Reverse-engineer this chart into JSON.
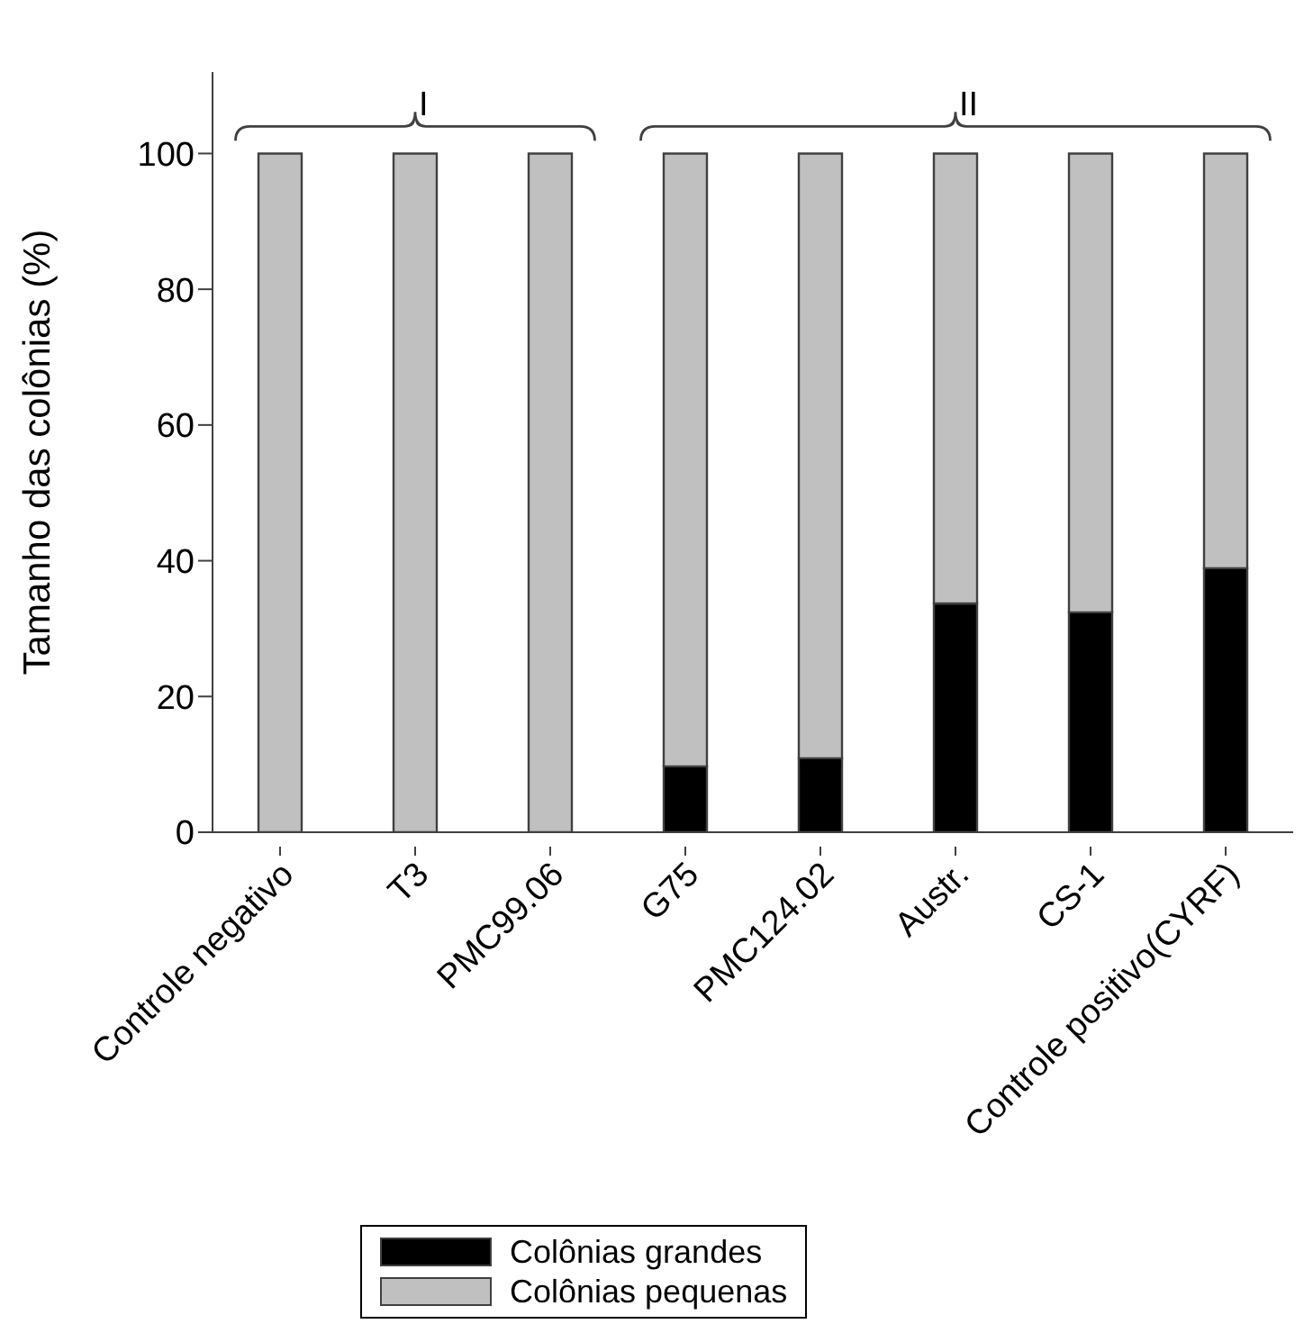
{
  "chart_data": {
    "type": "bar",
    "stacked": true,
    "ylabel": "Tamanho das colônias (%)",
    "categories": [
      "Controle negativo",
      "T3",
      "PMC99.06",
      "G75",
      "PMC124.02",
      "Austr.",
      "CS-1",
      "Controle positivo(CYRF)"
    ],
    "series": [
      {
        "name": "Colônias grandes",
        "color": "#000000",
        "values": [
          0,
          0,
          0,
          9.7,
          10.9,
          33.7,
          32.4,
          38.9
        ]
      },
      {
        "name": "Colônias pequenas",
        "color": "#c0c0c0",
        "values": [
          100,
          100,
          100,
          90.3,
          89.1,
          66.3,
          67.6,
          61.1
        ]
      }
    ],
    "ylim": [
      0,
      112
    ],
    "yticks": [
      0,
      20,
      40,
      60,
      80,
      100
    ],
    "grid": false,
    "legend": "bottom",
    "annotations": [
      "I",
      "II"
    ]
  }
}
